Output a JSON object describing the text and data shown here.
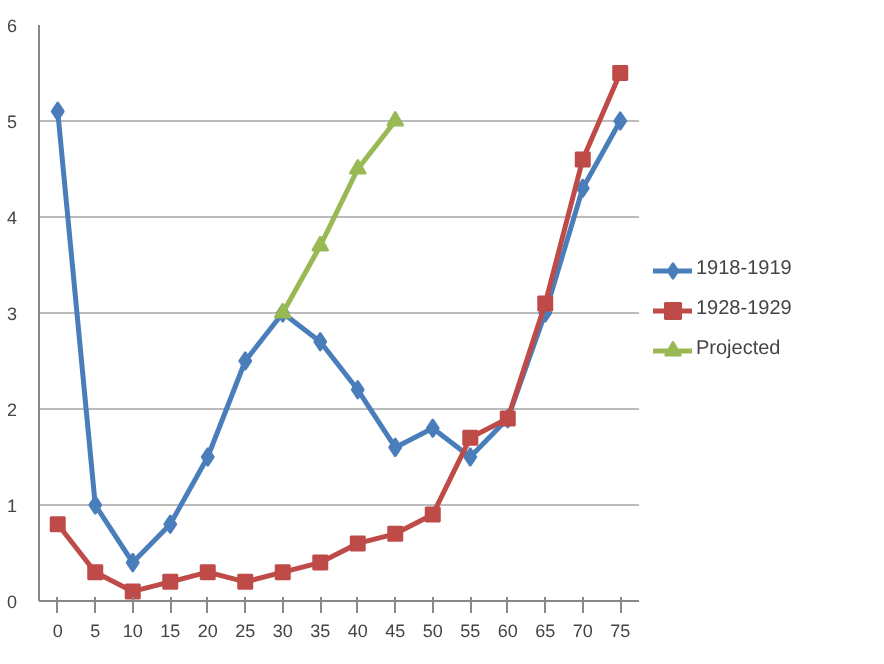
{
  "chart_data": {
    "type": "line",
    "categories": [
      "0",
      "5",
      "10",
      "15",
      "20",
      "25",
      "30",
      "35",
      "40",
      "45",
      "50",
      "55",
      "60",
      "65",
      "70",
      "75"
    ],
    "series": [
      {
        "name": "1918-1919",
        "color": "#4a7ebb",
        "marker": "diamond",
        "values": [
          5.1,
          1.0,
          0.4,
          0.8,
          1.5,
          2.5,
          3.0,
          2.7,
          2.2,
          1.6,
          1.8,
          1.5,
          1.9,
          3.0,
          4.3,
          5.0
        ]
      },
      {
        "name": "1928-1929",
        "color": "#be4b48",
        "marker": "square",
        "values": [
          0.8,
          0.3,
          0.1,
          0.2,
          0.3,
          0.2,
          0.3,
          0.4,
          0.6,
          0.7,
          0.9,
          1.7,
          1.9,
          3.1,
          4.6,
          5.5
        ]
      },
      {
        "name": "Projected",
        "color": "#98b954",
        "marker": "triangle",
        "values": [
          null,
          null,
          null,
          null,
          null,
          null,
          3.0,
          3.7,
          4.5,
          5.0,
          null,
          null,
          null,
          null,
          null,
          null
        ]
      }
    ],
    "ylim": [
      0,
      6
    ],
    "yticks": [
      0,
      1,
      2,
      3,
      4,
      5,
      6
    ],
    "grid": "y",
    "legend": "right",
    "line_style": "solid"
  }
}
